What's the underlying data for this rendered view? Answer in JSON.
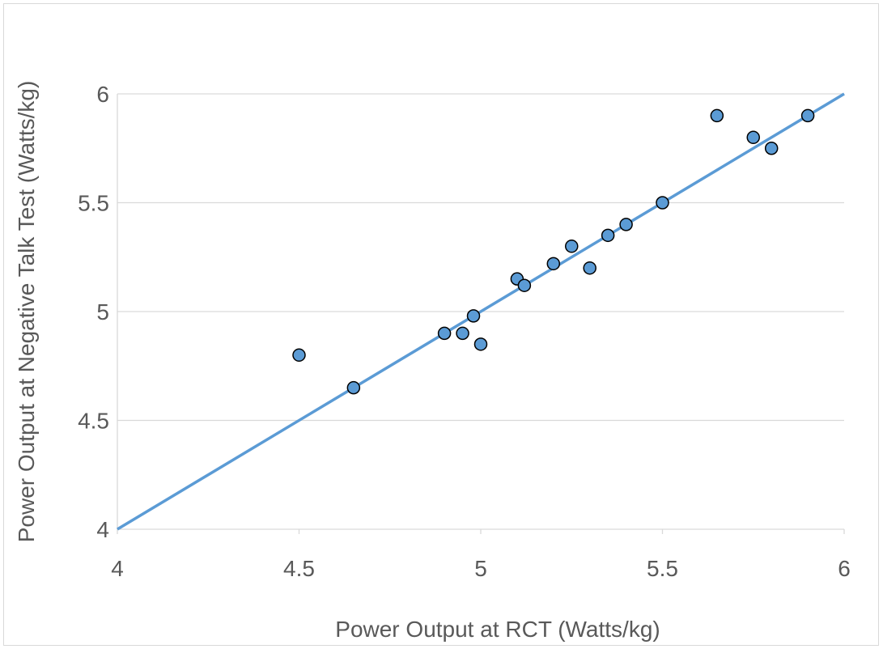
{
  "chart_data": {
    "type": "scatter",
    "title": "",
    "xlabel": "Power Output at RCT (Watts/kg)",
    "ylabel": "Power Output  at Negative Talk Test (Watts/kg)",
    "xlim": [
      4,
      6
    ],
    "ylim": [
      4,
      6
    ],
    "x_ticks": [
      "4",
      "4.5",
      "5",
      "5.5",
      "6"
    ],
    "y_ticks": [
      "4",
      "4.5",
      "5",
      "5.5",
      "6"
    ],
    "grid": "horizontal",
    "legend": "none",
    "series": [
      {
        "points": [
          {
            "x": 4.5,
            "y": 4.8
          },
          {
            "x": 4.65,
            "y": 4.65
          },
          {
            "x": 4.9,
            "y": 4.9
          },
          {
            "x": 4.95,
            "y": 4.9
          },
          {
            "x": 4.98,
            "y": 4.98
          },
          {
            "x": 5.0,
            "y": 4.85
          },
          {
            "x": 5.1,
            "y": 5.15
          },
          {
            "x": 5.12,
            "y": 5.12
          },
          {
            "x": 5.2,
            "y": 5.22
          },
          {
            "x": 5.25,
            "y": 5.3
          },
          {
            "x": 5.3,
            "y": 5.2
          },
          {
            "x": 5.35,
            "y": 5.35
          },
          {
            "x": 5.4,
            "y": 5.4
          },
          {
            "x": 5.5,
            "y": 5.5
          },
          {
            "x": 5.65,
            "y": 5.9
          },
          {
            "x": 5.75,
            "y": 5.8
          },
          {
            "x": 5.8,
            "y": 5.75
          },
          {
            "x": 5.9,
            "y": 5.9
          }
        ],
        "marker_color": "#5b9bd5",
        "marker_edge": "#000000"
      }
    ],
    "line_of_identity": {
      "from": [
        4,
        4
      ],
      "to": [
        6,
        6
      ],
      "color": "#5b9bd5"
    }
  }
}
